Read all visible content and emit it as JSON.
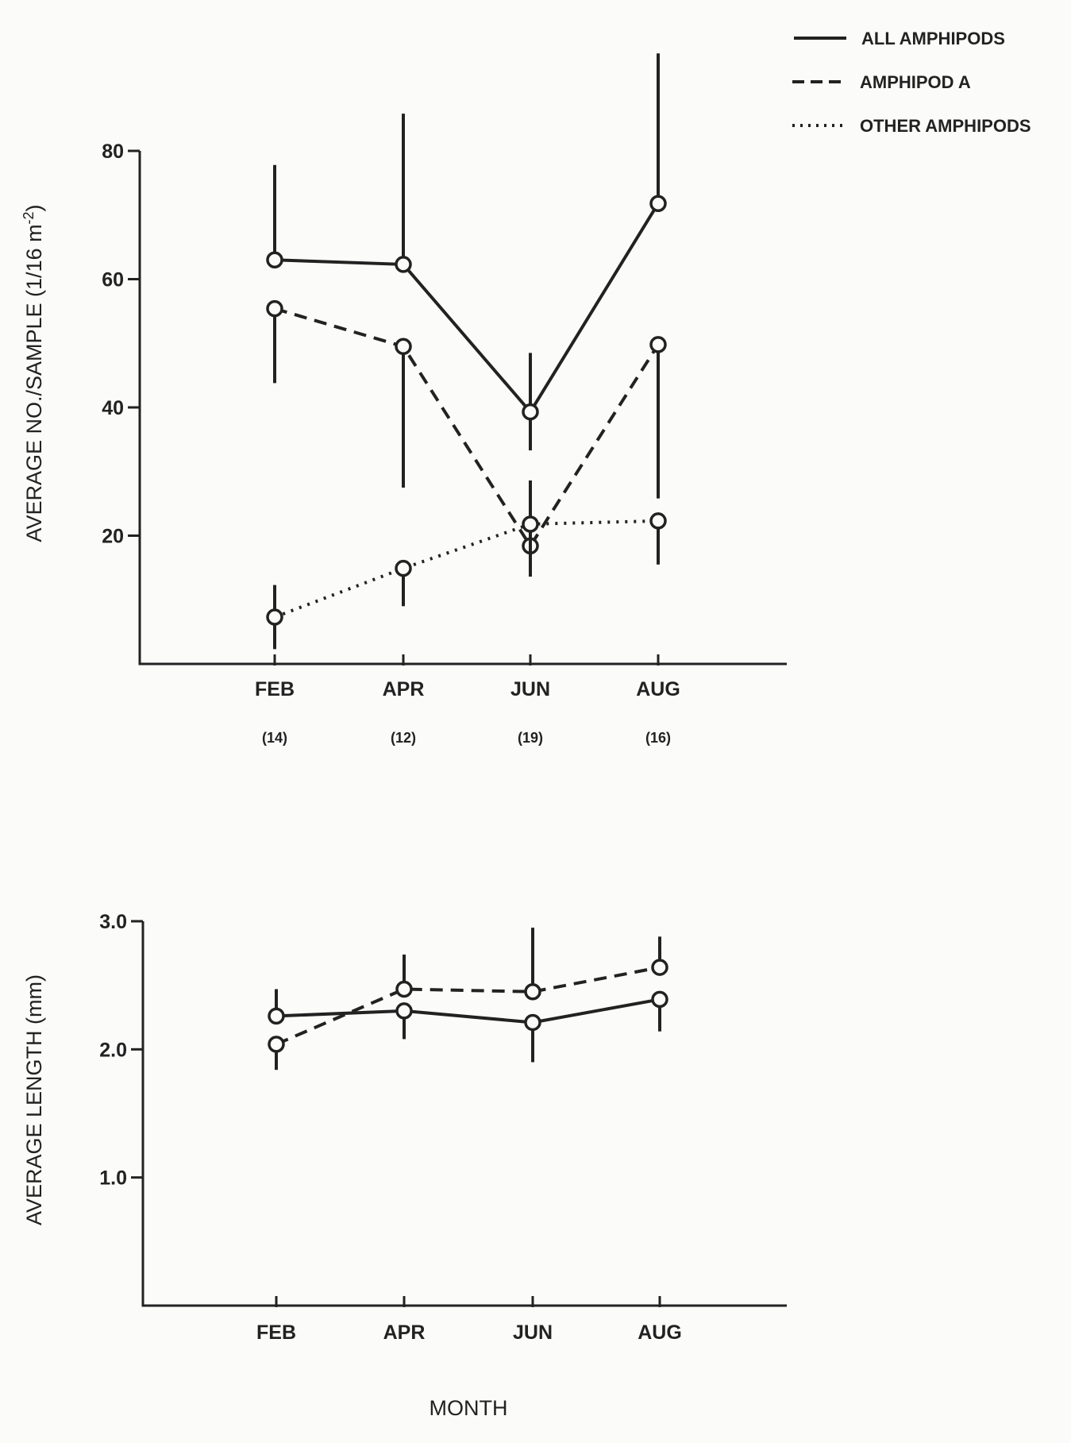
{
  "legend": {
    "entries": [
      {
        "label": "ALL AMPHIPODS",
        "style": "solid"
      },
      {
        "label": "AMPHIPOD A",
        "style": "dashed"
      },
      {
        "label": "OTHER AMPHIPODS",
        "style": "dotted"
      }
    ]
  },
  "x_axis": {
    "title": "MONTH"
  },
  "chart_data": [
    {
      "type": "line",
      "categories": [
        "FEB",
        "APR",
        "JUN",
        "AUG"
      ],
      "sample_counts": [
        "(14)",
        "(12)",
        "(19)",
        "(16)"
      ],
      "ylabel": "AVERAGE NO./SAMPLE (1/16 m",
      "ylabel_sup": "-2",
      "ylabel_end": ")",
      "ylim": [
        0,
        80
      ],
      "yticks": [
        20,
        40,
        60,
        80
      ],
      "ytick_labels": [
        "20",
        "40",
        "60",
        "80"
      ],
      "grid": false,
      "legend_position": "top-right",
      "series": [
        {
          "name": "ALL AMPHIPODS",
          "style": "solid",
          "values": [
            63,
            62.3,
            39.3,
            71.8
          ],
          "err_low": [
            63,
            62.3,
            33.3,
            71.8
          ],
          "err_high": [
            77.8,
            85.8,
            48.5,
            95.2
          ]
        },
        {
          "name": "AMPHIPOD A",
          "style": "dashed",
          "values": [
            55.4,
            49.5,
            18.4,
            49.8
          ],
          "err_low": [
            43.8,
            27.5,
            18.4,
            25.8
          ],
          "err_high": [
            55.4,
            49.5,
            18.4,
            49.8
          ]
        },
        {
          "name": "OTHER AMPHIPODS",
          "style": "dotted",
          "values": [
            7.3,
            14.9,
            21.8,
            22.3
          ],
          "err_low": [
            2.3,
            9,
            13.6,
            15.5
          ],
          "err_high": [
            12.3,
            14.9,
            28.6,
            22.3
          ]
        }
      ]
    },
    {
      "type": "line",
      "categories": [
        "FEB",
        "APR",
        "JUN",
        "AUG"
      ],
      "ylabel": "AVERAGE LENGTH (mm)",
      "ylim": [
        0,
        3.0
      ],
      "yticks": [
        1.0,
        2.0,
        3.0
      ],
      "ytick_labels": [
        "1.0",
        "2.0",
        "3.0"
      ],
      "grid": false,
      "series": [
        {
          "name": "ALL AMPHIPODS",
          "style": "solid",
          "values": [
            2.26,
            2.3,
            2.21,
            2.39
          ],
          "err_low": [
            2.26,
            2.08,
            1.9,
            2.14
          ],
          "err_high": [
            2.47,
            2.3,
            2.21,
            2.39
          ]
        },
        {
          "name": "AMPHIPOD A",
          "style": "dashed",
          "values": [
            2.04,
            2.47,
            2.45,
            2.64
          ],
          "err_low": [
            1.84,
            2.47,
            2.45,
            2.64
          ],
          "err_high": [
            2.04,
            2.74,
            2.95,
            2.88
          ]
        }
      ]
    }
  ]
}
